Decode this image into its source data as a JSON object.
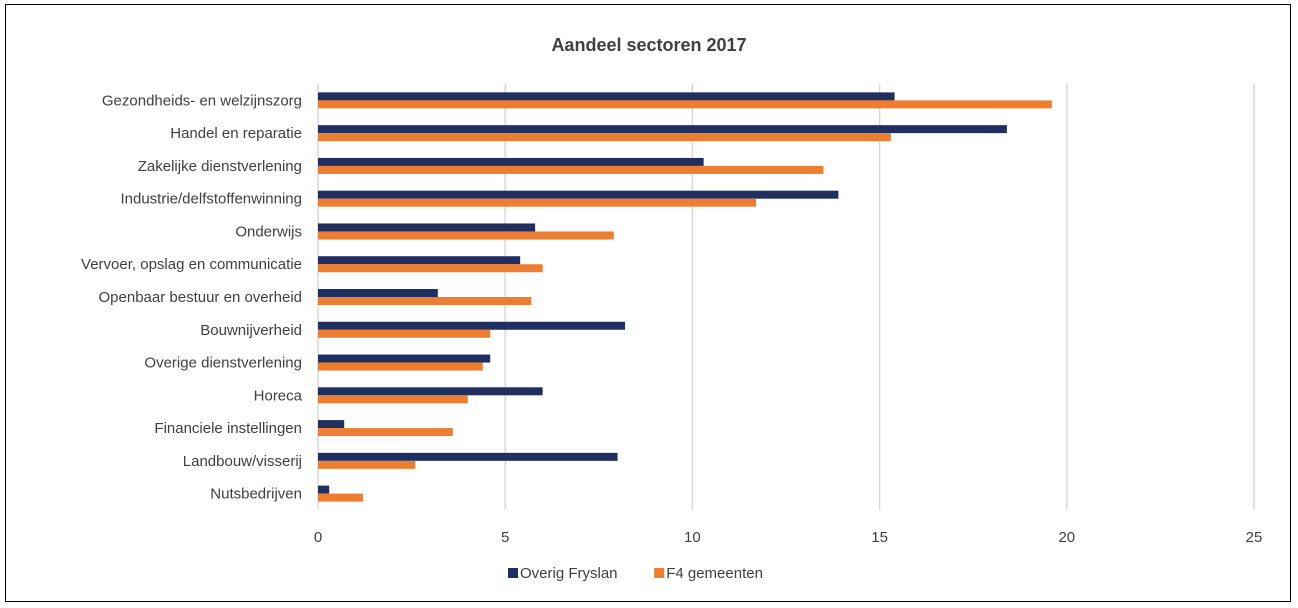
{
  "chart_data": {
    "type": "bar",
    "orientation": "horizontal",
    "title": "Aandeel sectoren 2017",
    "categories": [
      "Gezondheids- en welzijnszorg",
      "Handel en reparatie",
      "Zakelijke dienstverlening",
      "Industrie/delfstoffenwinning",
      "Onderwijs",
      "Vervoer, opslag en communicatie",
      "Openbaar bestuur en overheid",
      "Bouwnijverheid",
      "Overige dienstverlening",
      "Horeca",
      "Financiele instellingen",
      "Landbouw/visserij",
      "Nutsbedrijven"
    ],
    "series": [
      {
        "name": "Overig Fryslan",
        "color": "#1f2f5f",
        "values": [
          15.4,
          18.4,
          10.3,
          13.9,
          5.8,
          5.4,
          3.2,
          8.2,
          4.6,
          6.0,
          0.7,
          8.0,
          0.3
        ]
      },
      {
        "name": "F4 gemeenten",
        "color": "#ed7d31",
        "values": [
          19.6,
          15.3,
          13.5,
          11.7,
          7.9,
          6.0,
          5.7,
          4.6,
          4.4,
          4.0,
          3.6,
          2.6,
          1.2
        ]
      }
    ],
    "xlim": [
      0,
      25
    ],
    "xticks": [
      0,
      5,
      10,
      15,
      20,
      25
    ],
    "grid": "vertical",
    "legend_position": "bottom"
  }
}
